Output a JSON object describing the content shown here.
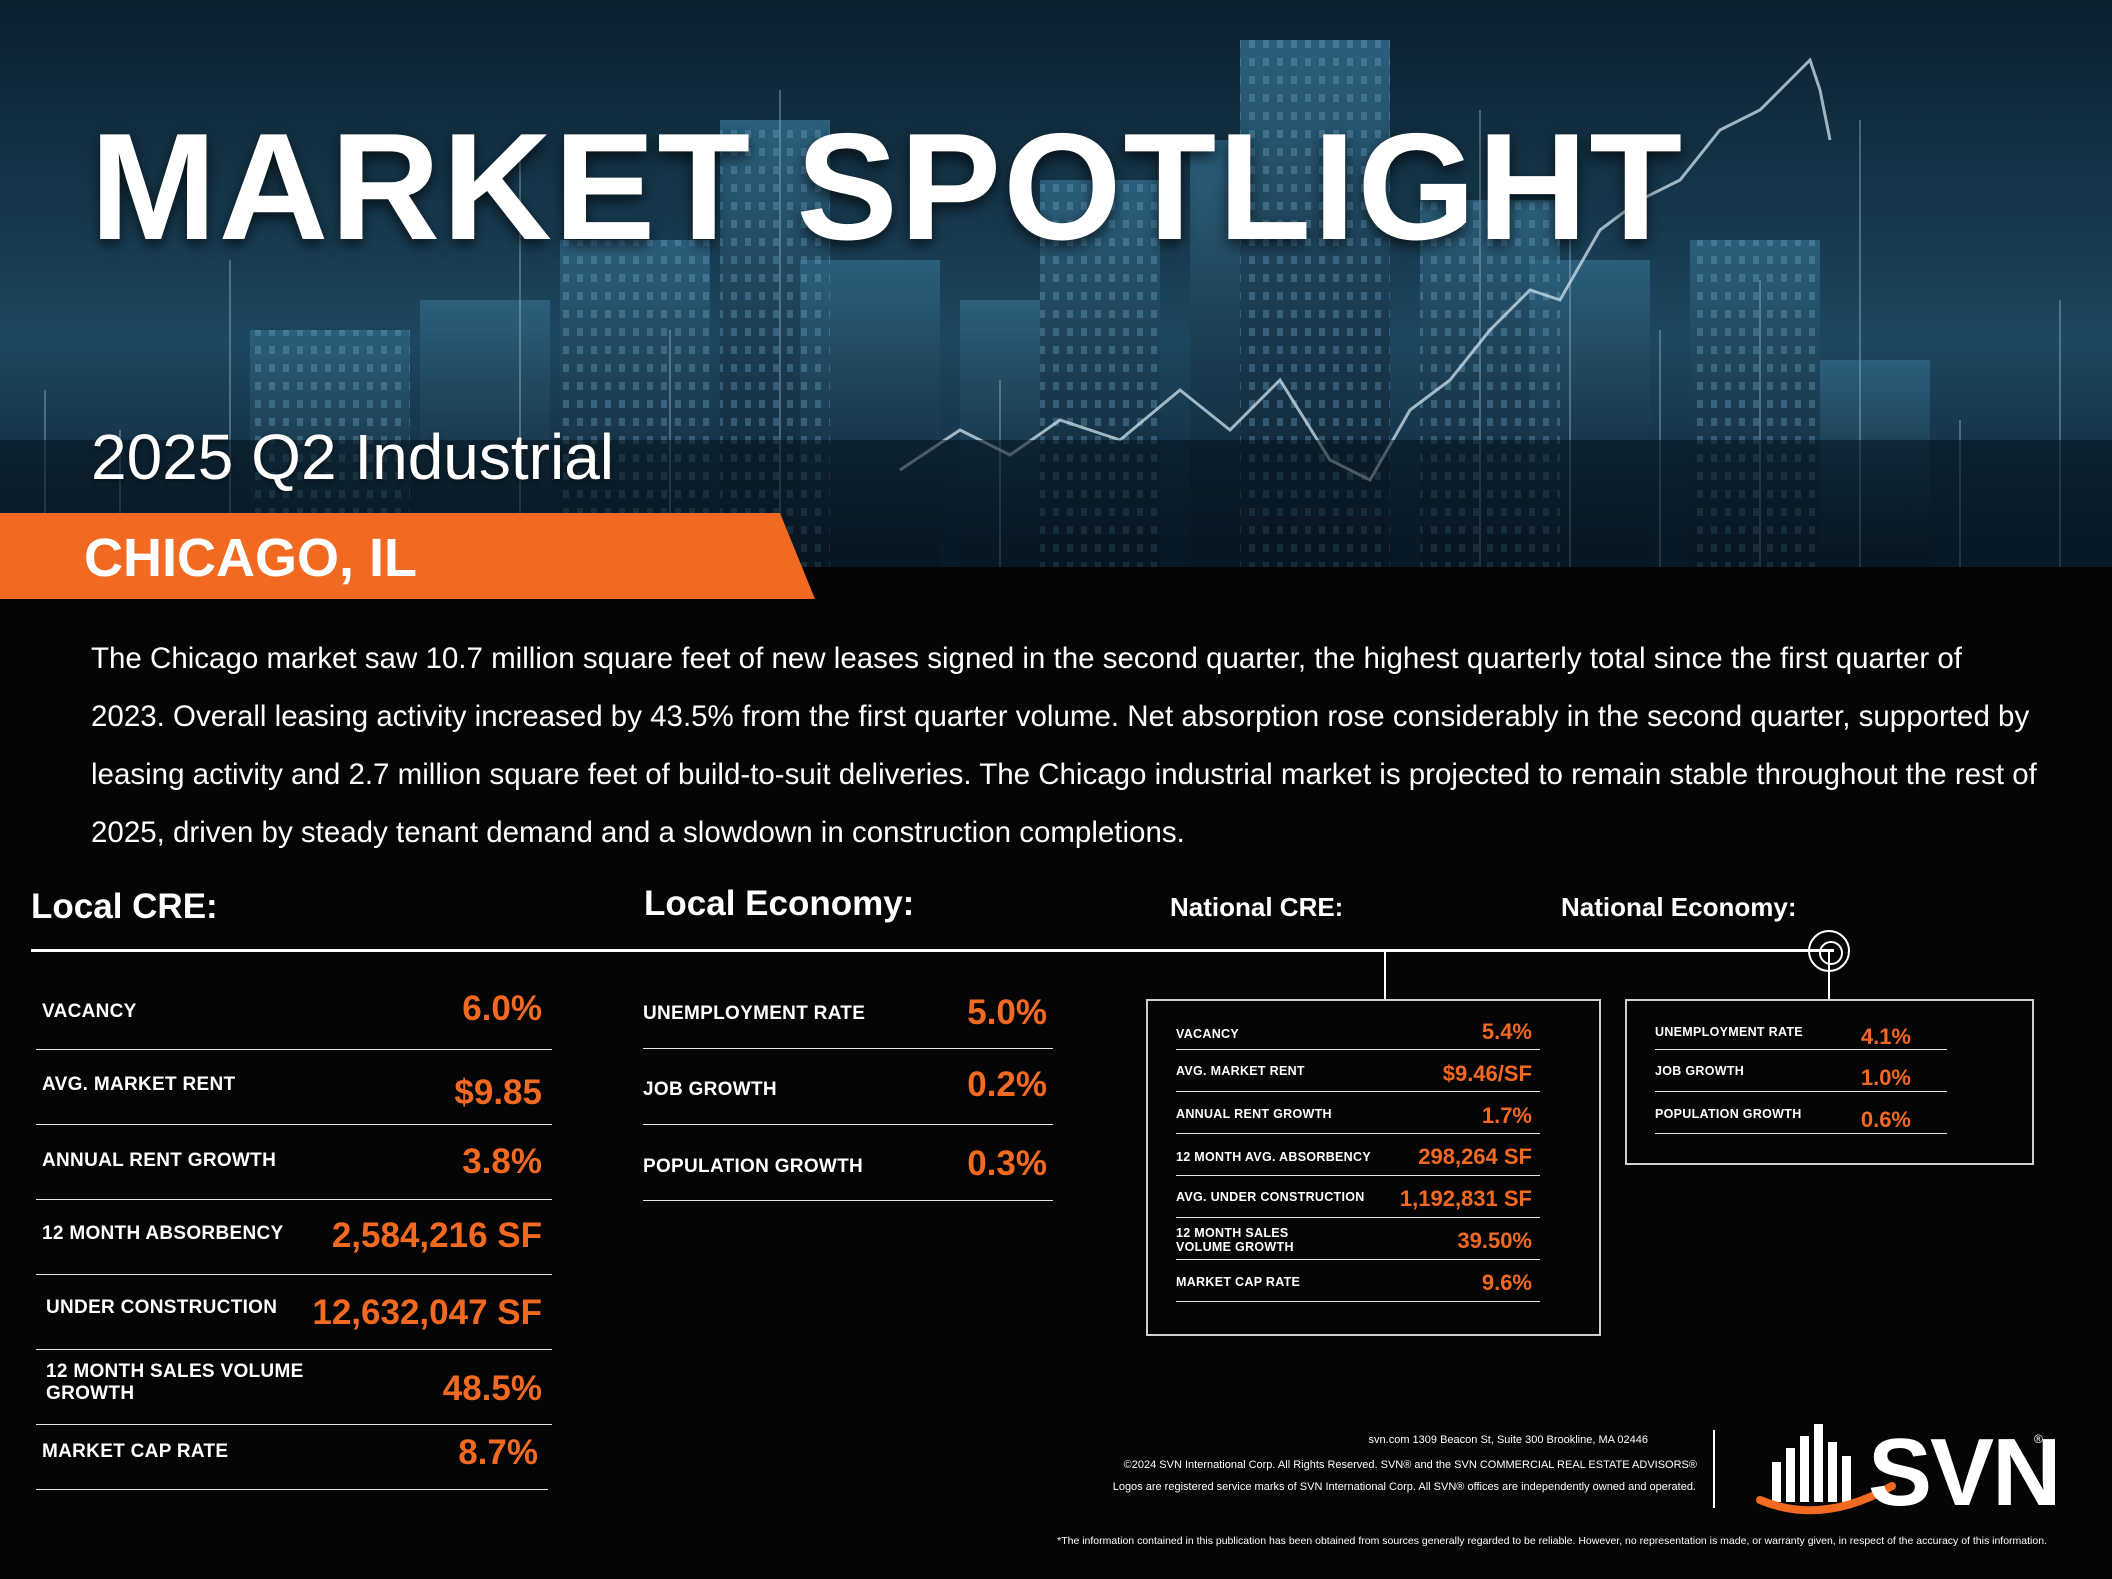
{
  "hero": {
    "title": "MARKET SPOTLIGHT",
    "subtitle": "2025 Q2 Industrial",
    "city": "CHICAGO, IL",
    "accent_color": "#f26a22"
  },
  "intro": "The Chicago market saw 10.7 million square feet of new leases signed in the second quarter, the highest quarterly total since the first quarter of 2023. Overall leasing activity increased by 43.5% from the first quarter volume. Net absorption rose considerably in the second quarter, supported by leasing activity and 2.7 million square feet of build-to-suit deliveries. The Chicago industrial market is projected to remain stable throughout the rest of 2025, driven by steady tenant demand and a slowdown in construction completions.",
  "local_cre": {
    "heading": "Local CRE:",
    "rows": [
      {
        "label": "VACANCY",
        "value": "6.0%"
      },
      {
        "label": "AVG. MARKET RENT",
        "value": "$9.85"
      },
      {
        "label": "ANNUAL RENT GROWTH",
        "value": "3.8%"
      },
      {
        "label": "12 MONTH ABSORBENCY",
        "value": "2,584,216 SF"
      },
      {
        "label": "UNDER CONSTRUCTION",
        "value": "12,632,047 SF"
      },
      {
        "label": "12 MONTH SALES VOLUME GROWTH",
        "value": "48.5%"
      },
      {
        "label": "MARKET CAP RATE",
        "value": "8.7%"
      }
    ]
  },
  "local_economy": {
    "heading": "Local Economy:",
    "rows": [
      {
        "label": "UNEMPLOYMENT RATE",
        "value": "5.0%"
      },
      {
        "label": "JOB GROWTH",
        "value": "0.2%"
      },
      {
        "label": "POPULATION GROWTH",
        "value": "0.3%"
      }
    ]
  },
  "national_cre": {
    "heading": "National CRE:",
    "rows": [
      {
        "label": "VACANCY",
        "value": "5.4%"
      },
      {
        "label": "AVG. MARKET RENT",
        "value": "$9.46/SF"
      },
      {
        "label": "ANNUAL RENT GROWTH",
        "value": "1.7%"
      },
      {
        "label": "12 MONTH AVG. ABSORBENCY",
        "value": "298,264 SF"
      },
      {
        "label": "AVG. UNDER CONSTRUCTION",
        "value": "1,192,831 SF"
      },
      {
        "label": "12 MONTH SALES VOLUME GROWTH",
        "value": "39.50%"
      },
      {
        "label": "MARKET CAP RATE",
        "value": "9.6%"
      }
    ]
  },
  "national_economy": {
    "heading": "National Economy:",
    "rows": [
      {
        "label": "UNEMPLOYMENT RATE",
        "value": "4.1%"
      },
      {
        "label": "JOB GROWTH",
        "value": "1.0%"
      },
      {
        "label": "POPULATION GROWTH",
        "value": "0.6%"
      }
    ]
  },
  "footer": {
    "address": "svn.com 1309 Beacon St, Suite 300 Brookline, MA 02446",
    "copyright": "©2024 SVN International Corp. All Rights Reserved. SVN® and the SVN COMMERCIAL REAL ESTATE ADVISORS®",
    "trademark": "Logos are registered service marks of SVN International Corp. All SVN® offices are independently owned and operated.",
    "disclaimer": "*The information contained in this publication has been obtained from sources generally regarded to be reliable. However, no representation is made, or warranty given, in respect of the accuracy of this information.",
    "logo_text": "SVN",
    "logo_reg": "®"
  }
}
